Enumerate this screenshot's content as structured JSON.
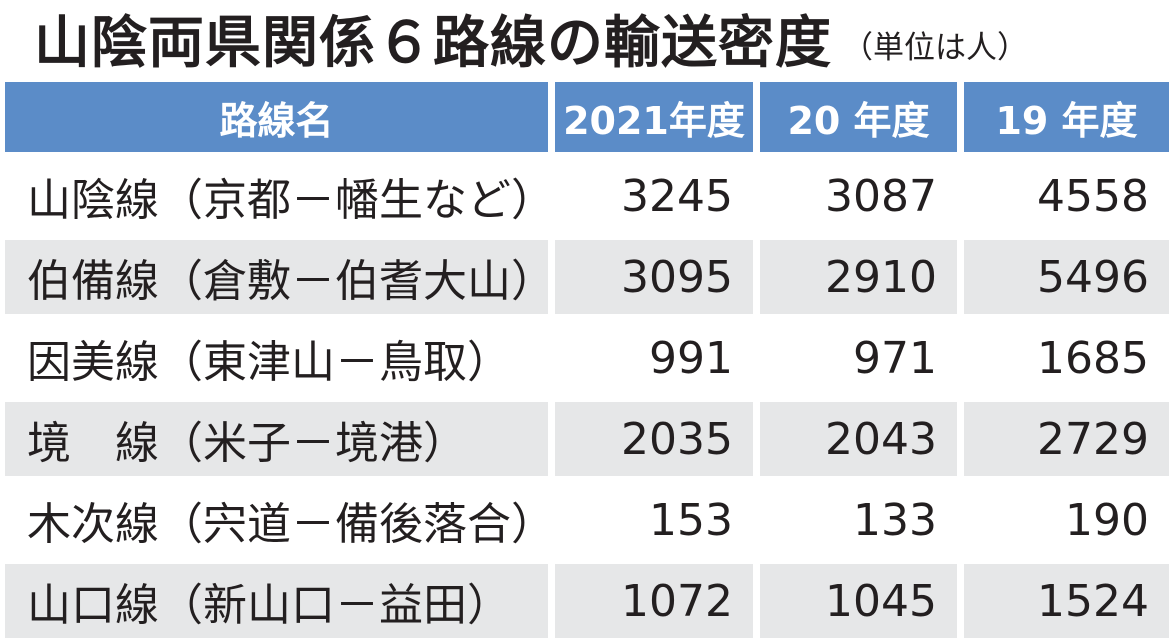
{
  "title": "山陰両県関係６路線の輸送密度",
  "unit": "（単位は人）",
  "chart_data": {
    "type": "table",
    "columns": [
      "路線名",
      "2021年度",
      "20 年度",
      "19 年度"
    ],
    "rows": [
      {
        "route": "山陰線（京都－幡生など）",
        "values": [
          "3245",
          "3087",
          "4558"
        ]
      },
      {
        "route": "伯備線（倉敷－伯耆大山）",
        "values": [
          "3095",
          "2910",
          "5496"
        ]
      },
      {
        "route": "因美線（東津山－鳥取）",
        "values": [
          "991",
          "971",
          "1685"
        ]
      },
      {
        "route": "境　線（米子－境港）",
        "values": [
          "2035",
          "2043",
          "2729"
        ]
      },
      {
        "route": "木次線（宍道－備後落合）",
        "values": [
          "153",
          "133",
          "190"
        ]
      },
      {
        "route": "山口線（新山口－益田）",
        "values": [
          "1072",
          "1045",
          "1524"
        ]
      }
    ]
  },
  "colors": {
    "header_bg": "#5b8cc8",
    "header_text": "#ffffff",
    "row_shade": "#e6e7e8",
    "text": "#231f20"
  }
}
